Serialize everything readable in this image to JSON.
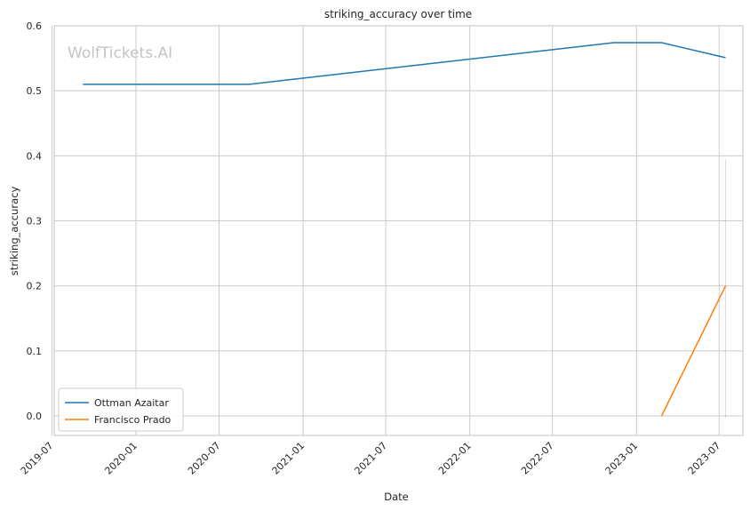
{
  "chart_data": {
    "type": "line",
    "title": "striking_accuracy over time",
    "xlabel": "Date",
    "ylabel": "striking_accuracy",
    "watermark": "WolfTickets.AI",
    "x_axis_type": "date",
    "xlim": [
      "2019-07-06",
      "2023-08-22"
    ],
    "ylim": [
      -0.03,
      0.6
    ],
    "x_ticks": [
      "2019-07",
      "2020-01",
      "2020-07",
      "2021-01",
      "2021-07",
      "2022-01",
      "2022-07",
      "2023-01",
      "2023-07"
    ],
    "x_tick_dates": [
      "2019-07-01",
      "2020-01-01",
      "2020-07-01",
      "2021-01-01",
      "2021-07-01",
      "2022-01-01",
      "2022-07-01",
      "2023-01-01",
      "2023-07-01"
    ],
    "y_ticks": [
      "0.0",
      "0.1",
      "0.2",
      "0.3",
      "0.4",
      "0.5",
      "0.6"
    ],
    "grid": true,
    "legend_position": "bottom-left",
    "series": [
      {
        "name": "Ottman Azaitar",
        "color": "#1f77b4",
        "points": [
          {
            "x": "2019-09-07",
            "y": 0.51
          },
          {
            "x": "2020-09-05",
            "y": 0.51
          },
          {
            "x": "2022-11-12",
            "y": 0.574
          },
          {
            "x": "2023-02-25",
            "y": 0.574
          },
          {
            "x": "2023-07-15",
            "y": 0.551
          }
        ]
      },
      {
        "name": "Francisco Prado",
        "color": "#ff7f0e",
        "points": [
          {
            "x": "2023-02-25",
            "y": 0.0
          },
          {
            "x": "2023-07-15",
            "y": 0.2
          }
        ]
      }
    ]
  }
}
